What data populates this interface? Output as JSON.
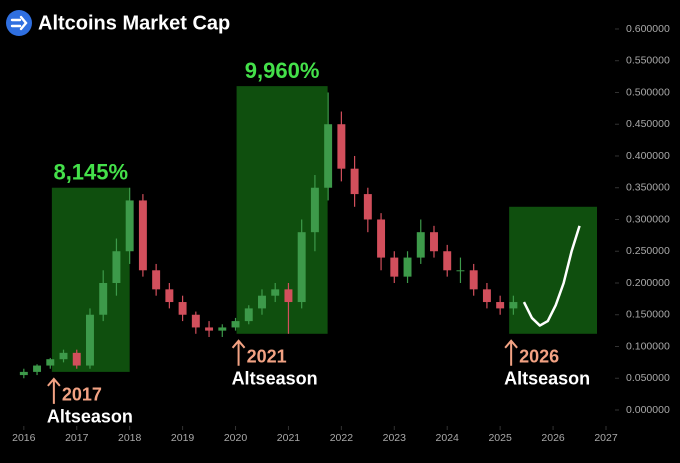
{
  "chart_data": {
    "type": "candlestick",
    "title": "Altcoins Market Cap",
    "x": [
      2016.0,
      2016.25,
      2016.5,
      2016.75,
      2017.0,
      2017.25,
      2017.5,
      2017.75,
      2018.0,
      2018.25,
      2018.5,
      2018.75,
      2019.0,
      2019.25,
      2019.5,
      2019.75,
      2020.0,
      2020.25,
      2020.5,
      2020.75,
      2021.0,
      2021.25,
      2021.5,
      2021.75,
      2022.0,
      2022.25,
      2022.5,
      2022.75,
      2023.0,
      2023.25,
      2023.5,
      2023.75,
      2024.0,
      2024.25,
      2024.5,
      2024.75,
      2025.0,
      2025.25
    ],
    "open": [
      0.055,
      0.06,
      0.07,
      0.08,
      0.09,
      0.07,
      0.15,
      0.2,
      0.25,
      0.33,
      0.22,
      0.19,
      0.17,
      0.15,
      0.13,
      0.125,
      0.13,
      0.14,
      0.16,
      0.18,
      0.19,
      0.17,
      0.28,
      0.35,
      0.45,
      0.38,
      0.34,
      0.3,
      0.24,
      0.21,
      0.24,
      0.28,
      0.25,
      0.22,
      0.22,
      0.19,
      0.17,
      0.16
    ],
    "high": [
      0.065,
      0.072,
      0.082,
      0.095,
      0.095,
      0.16,
      0.22,
      0.27,
      0.35,
      0.34,
      0.23,
      0.2,
      0.18,
      0.155,
      0.14,
      0.135,
      0.145,
      0.165,
      0.19,
      0.2,
      0.2,
      0.3,
      0.37,
      0.5,
      0.47,
      0.4,
      0.35,
      0.31,
      0.25,
      0.25,
      0.3,
      0.29,
      0.26,
      0.24,
      0.23,
      0.2,
      0.18,
      0.18
    ],
    "low": [
      0.05,
      0.055,
      0.065,
      0.075,
      0.065,
      0.065,
      0.14,
      0.18,
      0.23,
      0.21,
      0.18,
      0.16,
      0.14,
      0.12,
      0.115,
      0.115,
      0.125,
      0.135,
      0.15,
      0.17,
      0.12,
      0.16,
      0.25,
      0.33,
      0.36,
      0.32,
      0.28,
      0.22,
      0.2,
      0.2,
      0.23,
      0.24,
      0.21,
      0.2,
      0.18,
      0.16,
      0.15,
      0.15
    ],
    "close": [
      0.06,
      0.07,
      0.08,
      0.09,
      0.07,
      0.15,
      0.2,
      0.25,
      0.33,
      0.22,
      0.19,
      0.17,
      0.15,
      0.13,
      0.125,
      0.13,
      0.14,
      0.16,
      0.18,
      0.19,
      0.17,
      0.28,
      0.35,
      0.45,
      0.38,
      0.34,
      0.3,
      0.24,
      0.21,
      0.24,
      0.28,
      0.25,
      0.22,
      0.22,
      0.19,
      0.17,
      0.16,
      0.17
    ],
    "up_color": "#3d9a4a",
    "down_color": "#d24f5c",
    "xlim": [
      2015.55,
      2027.17
    ],
    "ylim": [
      0,
      0.622
    ],
    "xticks": [
      2016,
      2017,
      2018,
      2019,
      2020,
      2021,
      2022,
      2023,
      2024,
      2025,
      2026,
      2027
    ],
    "yticks": [
      {
        "value": 0,
        "label": "0.000000"
      },
      {
        "value": 0.05,
        "label": "0.050000"
      },
      {
        "value": 0.1,
        "label": "0.100000"
      },
      {
        "value": 0.15,
        "label": "0.150000"
      },
      {
        "value": 0.2,
        "label": "0.200000"
      },
      {
        "value": 0.25,
        "label": "0.250000"
      },
      {
        "value": 0.3,
        "label": "0.300000"
      },
      {
        "value": 0.35,
        "label": "0.350000"
      },
      {
        "value": 0.4,
        "label": "0.400000"
      },
      {
        "value": 0.45,
        "label": "0.450000"
      },
      {
        "value": 0.5,
        "label": "0.500000"
      },
      {
        "value": 0.55,
        "label": "0.550000"
      },
      {
        "value": 0.6,
        "label": "0.600000"
      }
    ],
    "highlight_color": "#11580f",
    "highlights": [
      {
        "x": [
          2016.53,
          2018.0
        ],
        "y": [
          0.06,
          0.35
        ],
        "percent": "8,145%",
        "year": "2017",
        "label": "Altseason"
      },
      {
        "x": [
          2020.02,
          2021.74
        ],
        "y": [
          0.12,
          0.51
        ],
        "percent": "9,960%",
        "year": "2021",
        "label": "Altseason"
      },
      {
        "x": [
          2025.17,
          2026.83
        ],
        "y": [
          0.12,
          0.32
        ],
        "year": "2026",
        "label": "Altseason"
      }
    ],
    "projection": {
      "x": [
        2025.45,
        2025.6,
        2025.75,
        2025.9,
        2026.05,
        2026.2,
        2026.35,
        2026.5
      ],
      "values": [
        0.17,
        0.145,
        0.133,
        0.14,
        0.165,
        0.2,
        0.25,
        0.29
      ],
      "color": "#ffffff"
    }
  }
}
